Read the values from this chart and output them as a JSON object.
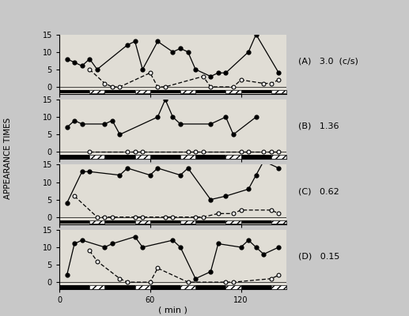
{
  "panels": [
    {
      "label": "(A)   3.0  (c/s)",
      "filled_x": [
        5,
        10,
        15,
        20,
        25,
        45,
        50,
        55,
        65,
        75,
        80,
        85,
        90,
        100,
        105,
        110,
        125,
        130,
        145
      ],
      "filled_y": [
        8,
        7,
        6,
        8,
        5,
        12,
        13,
        5,
        13,
        10,
        11,
        10,
        5,
        3,
        4,
        4,
        10,
        15,
        4
      ],
      "open_x": [
        20,
        30,
        35,
        40,
        60,
        65,
        70,
        95,
        100,
        115,
        120,
        135,
        140,
        145
      ],
      "open_y": [
        5,
        1,
        0,
        0,
        4,
        0,
        0,
        3,
        0,
        0,
        2,
        1,
        1,
        2
      ]
    },
    {
      "label": "(B)   1.36",
      "filled_x": [
        5,
        10,
        15,
        30,
        35,
        40,
        65,
        70,
        75,
        80,
        100,
        110,
        115,
        130
      ],
      "filled_y": [
        7,
        9,
        8,
        8,
        9,
        5,
        10,
        15,
        10,
        8,
        8,
        10,
        5,
        10
      ],
      "open_x": [
        20,
        45,
        50,
        55,
        85,
        90,
        95,
        120,
        125,
        135,
        140,
        145
      ],
      "open_y": [
        0,
        0,
        0,
        0,
        0,
        0,
        0,
        0,
        0,
        0,
        0,
        0
      ]
    },
    {
      "label": "(C)   0.62",
      "filled_x": [
        5,
        15,
        20,
        40,
        45,
        60,
        65,
        80,
        85,
        100,
        110,
        125,
        130,
        135,
        145
      ],
      "filled_y": [
        4,
        13,
        13,
        12,
        14,
        12,
        14,
        12,
        14,
        5,
        6,
        8,
        12,
        16,
        14
      ],
      "open_x": [
        10,
        25,
        30,
        35,
        50,
        55,
        70,
        75,
        90,
        95,
        105,
        115,
        120,
        140,
        145
      ],
      "open_y": [
        6,
        0,
        0,
        0,
        0,
        0,
        0,
        0,
        0,
        0,
        1,
        1,
        2,
        2,
        1
      ]
    },
    {
      "label": "(D)   0.15",
      "filled_x": [
        5,
        10,
        15,
        30,
        35,
        50,
        55,
        75,
        80,
        90,
        100,
        105,
        120,
        125,
        130,
        135,
        145
      ],
      "filled_y": [
        2,
        11,
        12,
        10,
        11,
        13,
        10,
        12,
        10,
        1,
        3,
        11,
        10,
        12,
        10,
        8,
        10
      ],
      "open_x": [
        20,
        25,
        40,
        45,
        60,
        65,
        85,
        110,
        115,
        140,
        145
      ],
      "open_y": [
        9,
        6,
        1,
        0,
        0,
        4,
        0,
        0,
        0,
        1,
        2
      ]
    }
  ],
  "dark_bars": [
    [
      [
        0,
        20
      ],
      [
        30,
        50
      ],
      [
        60,
        80
      ],
      [
        90,
        110
      ],
      [
        120,
        140
      ]
    ],
    [
      [
        0,
        20
      ],
      [
        30,
        50
      ],
      [
        60,
        80
      ],
      [
        90,
        110
      ],
      [
        120,
        140
      ]
    ],
    [
      [
        0,
        20
      ],
      [
        30,
        50
      ],
      [
        60,
        80
      ],
      [
        90,
        110
      ],
      [
        120,
        140
      ]
    ],
    [
      [
        0,
        20
      ],
      [
        30,
        50
      ],
      [
        60,
        80
      ],
      [
        90,
        110
      ],
      [
        120,
        140
      ]
    ]
  ],
  "hatch_bars": [
    [
      [
        20,
        30
      ],
      [
        50,
        60
      ],
      [
        80,
        90
      ],
      [
        110,
        120
      ],
      [
        140,
        150
      ]
    ],
    [
      [
        20,
        30
      ],
      [
        50,
        60
      ],
      [
        80,
        90
      ],
      [
        110,
        120
      ],
      [
        140,
        150
      ]
    ],
    [
      [
        20,
        30
      ],
      [
        50,
        60
      ],
      [
        80,
        90
      ],
      [
        110,
        120
      ],
      [
        140,
        150
      ]
    ],
    [
      [
        20,
        30
      ],
      [
        50,
        60
      ],
      [
        80,
        90
      ],
      [
        110,
        120
      ],
      [
        140,
        150
      ]
    ]
  ],
  "xlim": [
    0,
    150
  ],
  "ylim": [
    -2,
    15
  ],
  "yticks": [
    0,
    5,
    10,
    15
  ],
  "xticks": [
    0,
    60,
    120
  ],
  "xlabel": "( min )",
  "ylabel": "APPEARANCE TIMES",
  "bg_color": "#c8c8c8",
  "axes_color": "#e0ddd5"
}
